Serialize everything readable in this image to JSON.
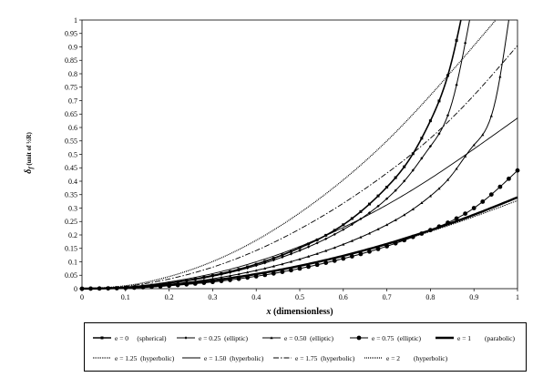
{
  "chart_data": {
    "type": "line",
    "xlabel_italic": "x",
    "xlabel_rest": " (dimensionless)",
    "ylabel_symbol": "δ",
    "ylabel_sub": "f",
    "ylabel_rest": " (unit of  ½R)",
    "xlim": [
      0,
      1
    ],
    "ylim": [
      0,
      1
    ],
    "xticks": [
      "0",
      "0.1",
      "0.2",
      "0.3",
      "0.4",
      "0.5",
      "0.6",
      "0.7",
      "0.8",
      "0.9",
      "1"
    ],
    "yticks": [
      "0",
      "0.05",
      "0.1",
      "0.15",
      "0.2",
      "0.25",
      "0.3",
      "0.35",
      "0.4",
      "0.45",
      "0.5",
      "0.55",
      "0.6",
      "0.65",
      "0.7",
      "0.75",
      "0.8",
      "0.85",
      "0.9",
      "0.95",
      "1"
    ],
    "grid": false,
    "legend_position": "bottom",
    "series": [
      {
        "name": "e = 0     (spherical)",
        "e": 0,
        "marker": "square",
        "width": 1.6,
        "x": [
          0,
          0.1,
          0.2,
          0.3,
          0.4,
          0.5,
          0.6,
          0.7,
          0.75,
          0.8,
          0.85,
          0.87
        ],
        "y": [
          0,
          0.005,
          0.021,
          0.049,
          0.091,
          0.152,
          0.238,
          0.378,
          0.477,
          0.625,
          0.854,
          1.0
        ]
      },
      {
        "name": "e = 0.25  (elliptic)",
        "e": 0.25,
        "marker": "diamond",
        "width": 1.0,
        "x": [
          0,
          0.1,
          0.2,
          0.3,
          0.4,
          0.5,
          0.6,
          0.7,
          0.75,
          0.8,
          0.85,
          0.89
        ],
        "y": [
          0,
          0.005,
          0.02,
          0.046,
          0.086,
          0.142,
          0.22,
          0.335,
          0.42,
          0.53,
          0.695,
          1.0
        ]
      },
      {
        "name": "e = 0.50  (elliptic)",
        "e": 0.5,
        "marker": "triangle",
        "width": 1.0,
        "x": [
          0,
          0.1,
          0.2,
          0.3,
          0.4,
          0.5,
          0.6,
          0.7,
          0.75,
          0.8,
          0.85,
          0.9,
          0.95,
          0.98
        ],
        "y": [
          0,
          0.004,
          0.016,
          0.037,
          0.068,
          0.11,
          0.165,
          0.238,
          0.285,
          0.345,
          0.425,
          0.535,
          0.705,
          1.0
        ]
      },
      {
        "name": "e = 0.75  (elliptic)",
        "e": 0.75,
        "marker": "circle",
        "width": 1.0,
        "x": [
          0,
          0.1,
          0.2,
          0.3,
          0.4,
          0.5,
          0.6,
          0.7,
          0.8,
          0.9,
          1.0
        ],
        "y": [
          0,
          0.0025,
          0.011,
          0.025,
          0.046,
          0.075,
          0.112,
          0.158,
          0.218,
          0.3,
          0.44
        ]
      },
      {
        "name": "e = 1        (parabolic)",
        "e": 1,
        "marker": "none",
        "width": 2.4,
        "x": [
          0,
          0.1,
          0.2,
          0.3,
          0.4,
          0.5,
          0.6,
          0.7,
          0.8,
          0.9,
          1.0
        ],
        "y": [
          0,
          0.0034,
          0.0136,
          0.0306,
          0.0544,
          0.085,
          0.1224,
          0.1666,
          0.2176,
          0.2754,
          0.34
        ]
      },
      {
        "name": "e = 1.25  (hyperbolic)",
        "e": 1.25,
        "marker": "none",
        "width": 1.0,
        "dash": "1.5,1",
        "x": [
          0,
          0.1,
          0.2,
          0.3,
          0.4,
          0.5,
          0.6,
          0.7,
          0.8,
          0.9,
          1.0
        ],
        "y": [
          0,
          0.0034,
          0.0136,
          0.0305,
          0.0541,
          0.0843,
          0.121,
          0.164,
          0.213,
          0.268,
          0.328
        ]
      },
      {
        "name": "e = 1.50  (hyperbolic)",
        "e": 1.5,
        "marker": "none",
        "width": 0.9,
        "x": [
          0,
          0.1,
          0.2,
          0.3,
          0.4,
          0.5,
          0.6,
          0.7,
          0.8,
          0.9,
          1.0
        ],
        "y": [
          0,
          0.006,
          0.025,
          0.056,
          0.1,
          0.157,
          0.228,
          0.312,
          0.41,
          0.52,
          0.635
        ]
      },
      {
        "name": "e = 1.75  (hyperbolic)",
        "e": 1.75,
        "marker": "none",
        "width": 0.9,
        "dash": "6,2,1.5,2",
        "x": [
          0,
          0.1,
          0.2,
          0.3,
          0.4,
          0.5,
          0.6,
          0.7,
          0.8,
          0.9,
          1.0
        ],
        "y": [
          0,
          0.009,
          0.036,
          0.08,
          0.142,
          0.222,
          0.318,
          0.43,
          0.56,
          0.72,
          0.905
        ]
      },
      {
        "name": "e = 2        (hyperbolic)",
        "e": 2,
        "marker": "none",
        "width": 1.2,
        "dash": "1,1",
        "x": [
          0,
          0.1,
          0.2,
          0.3,
          0.4,
          0.5,
          0.6,
          0.7,
          0.8,
          0.9,
          0.95
        ],
        "y": [
          0,
          0.011,
          0.045,
          0.101,
          0.18,
          0.282,
          0.405,
          0.55,
          0.72,
          0.905,
          1.0
        ]
      }
    ]
  }
}
